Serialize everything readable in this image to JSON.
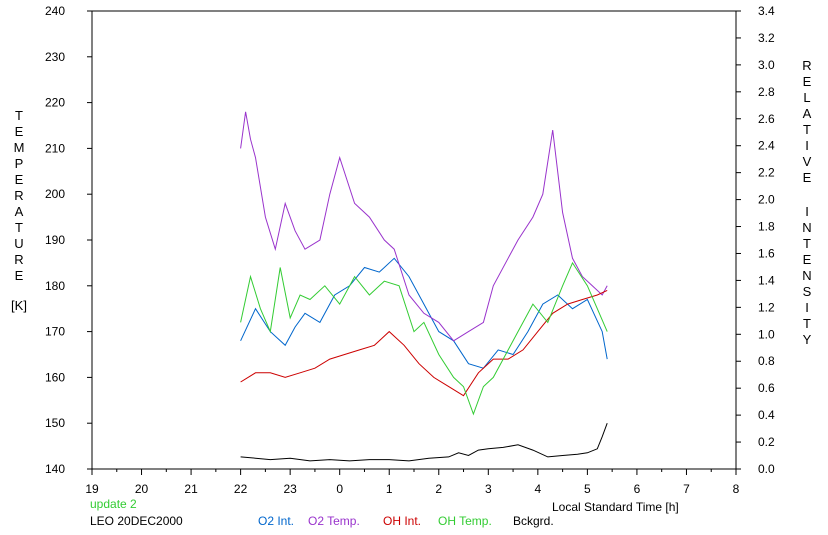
{
  "chart_data": {
    "type": "line",
    "left_axis_label_letters": [
      "T",
      "E",
      "M",
      "P",
      "E",
      "R",
      "A",
      "T",
      "U",
      "R",
      "E"
    ],
    "left_axis_unit": "[K]",
    "right_axis_label_word1": [
      "R",
      "E",
      "L",
      "A",
      "T",
      "I",
      "V",
      "E"
    ],
    "right_axis_label_word2": [
      "I",
      "N",
      "T",
      "E",
      "N",
      "S",
      "I",
      "T",
      "Y"
    ],
    "xlabel": "Local Standard Time [h]",
    "update_note": "update 2",
    "station_note": "LEO 20DEC2000",
    "x_range": [
      19,
      32
    ],
    "x_tick_labels": [
      "19",
      "20",
      "21",
      "22",
      "23",
      "0",
      "1",
      "2",
      "3",
      "4",
      "5",
      "6",
      "7",
      "8"
    ],
    "y_left_range": [
      140,
      240
    ],
    "y_left_ticks": [
      140,
      150,
      160,
      170,
      180,
      190,
      200,
      210,
      220,
      230,
      240
    ],
    "y_right_range": [
      0.0,
      3.4
    ],
    "y_right_ticks": [
      "0.0",
      "0.2",
      "0.4",
      "0.6",
      "0.8",
      "1.0",
      "1.2",
      "1.4",
      "1.6",
      "1.8",
      "2.0",
      "2.2",
      "2.4",
      "2.6",
      "2.8",
      "3.0",
      "3.2",
      "3.4"
    ],
    "grid": false,
    "series": [
      {
        "name": "O2 Int.",
        "axis": "left",
        "color": "#0066cc",
        "x": [
          22.0,
          22.3,
          22.6,
          22.9,
          23.1,
          23.3,
          23.6,
          23.9,
          24.2,
          24.5,
          24.8,
          25.1,
          25.4,
          25.7,
          26.0,
          26.3,
          26.6,
          26.9,
          27.2,
          27.5,
          27.8,
          28.1,
          28.4,
          28.7,
          29.0,
          29.3,
          29.4
        ],
        "y": [
          168,
          175,
          170,
          167,
          171,
          174,
          172,
          178,
          180,
          184,
          183,
          186,
          182,
          176,
          170,
          168,
          163,
          162,
          166,
          165,
          170,
          176,
          178,
          175,
          177,
          170,
          164
        ]
      },
      {
        "name": "O2 Temp.",
        "axis": "left",
        "color": "#9933cc",
        "x": [
          22.0,
          22.1,
          22.2,
          22.3,
          22.5,
          22.7,
          22.9,
          23.1,
          23.3,
          23.6,
          23.8,
          24.0,
          24.3,
          24.6,
          24.9,
          25.1,
          25.4,
          25.7,
          26.0,
          26.3,
          26.6,
          26.9,
          27.1,
          27.4,
          27.6,
          27.9,
          28.1,
          28.3,
          28.5,
          28.7,
          28.9,
          29.1,
          29.3,
          29.4
        ],
        "y": [
          210,
          218,
          212,
          208,
          195,
          188,
          198,
          192,
          188,
          190,
          200,
          208,
          198,
          195,
          190,
          188,
          178,
          174,
          172,
          168,
          170,
          172,
          180,
          186,
          190,
          195,
          200,
          214,
          196,
          186,
          182,
          180,
          178,
          180
        ]
      },
      {
        "name": "OH Int.",
        "axis": "left",
        "color": "#cc0000",
        "x": [
          22.0,
          22.3,
          22.6,
          22.9,
          23.2,
          23.5,
          23.8,
          24.1,
          24.4,
          24.7,
          25.0,
          25.3,
          25.6,
          25.9,
          26.2,
          26.5,
          26.8,
          27.1,
          27.4,
          27.7,
          28.0,
          28.3,
          28.6,
          28.9,
          29.2,
          29.4
        ],
        "y": [
          159,
          161,
          161,
          160,
          161,
          162,
          164,
          165,
          166,
          167,
          170,
          167,
          163,
          160,
          158,
          156,
          161,
          164,
          164,
          166,
          170,
          174,
          176,
          177,
          178,
          179
        ]
      },
      {
        "name": "OH Temp.",
        "axis": "left",
        "color": "#33cc33",
        "x": [
          22.0,
          22.2,
          22.4,
          22.6,
          22.8,
          23.0,
          23.2,
          23.4,
          23.7,
          24.0,
          24.3,
          24.6,
          24.9,
          25.2,
          25.5,
          25.7,
          26.0,
          26.3,
          26.5,
          26.7,
          26.9,
          27.1,
          27.3,
          27.6,
          27.9,
          28.2,
          28.5,
          28.7,
          29.0,
          29.2,
          29.4
        ],
        "y": [
          172,
          182,
          175,
          170,
          184,
          173,
          178,
          177,
          180,
          176,
          182,
          178,
          181,
          180,
          170,
          172,
          165,
          160,
          158,
          152,
          158,
          160,
          164,
          170,
          176,
          172,
          180,
          185,
          180,
          175,
          170
        ]
      },
      {
        "name": "Bckgrd.",
        "axis": "right",
        "color": "#000000",
        "x": [
          22.0,
          22.3,
          22.6,
          23.0,
          23.4,
          23.8,
          24.2,
          24.6,
          25.0,
          25.4,
          25.8,
          26.2,
          26.4,
          26.6,
          26.8,
          27.0,
          27.3,
          27.6,
          27.9,
          28.2,
          28.5,
          28.8,
          29.0,
          29.2,
          29.3,
          29.4
        ],
        "y": [
          0.09,
          0.08,
          0.07,
          0.08,
          0.06,
          0.07,
          0.06,
          0.07,
          0.07,
          0.06,
          0.08,
          0.09,
          0.12,
          0.1,
          0.14,
          0.15,
          0.16,
          0.18,
          0.14,
          0.09,
          0.1,
          0.11,
          0.12,
          0.15,
          0.24,
          0.34
        ]
      }
    ]
  }
}
